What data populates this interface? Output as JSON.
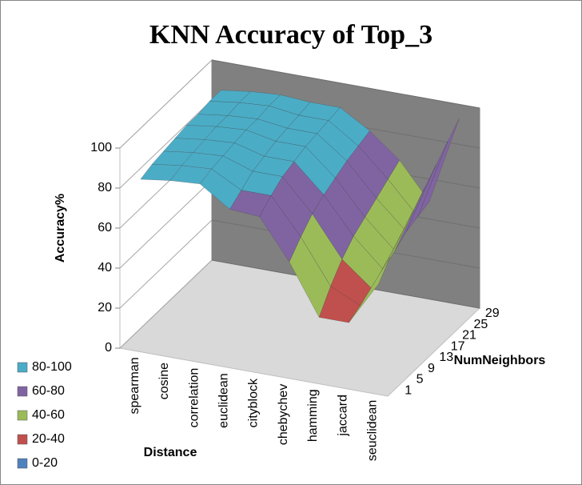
{
  "chart_data": {
    "type": "surface3d",
    "title": "KNN Accuracy of Top_3",
    "x_label": "Distance",
    "y_label": "Accuracy%",
    "z_label": "NumNeighbors",
    "categories": [
      "spearman",
      "cosine",
      "correlation",
      "euclidean",
      "cityblock",
      "chebychev",
      "hamming",
      "jaccard",
      "seuclidean"
    ],
    "z_categories": [
      "1",
      "5",
      "9",
      "13",
      "17",
      "21",
      "25",
      "29"
    ],
    "values": [
      [
        83,
        85,
        86,
        76,
        75,
        55,
        30,
        30,
        52
      ],
      [
        85,
        87,
        88,
        80,
        80,
        62,
        40,
        33,
        60
      ],
      [
        86,
        88,
        89,
        84,
        84,
        68,
        48,
        36,
        66
      ],
      [
        87,
        89,
        90,
        86,
        86,
        72,
        54,
        40,
        72
      ],
      [
        88,
        90,
        91,
        88,
        88,
        75,
        58,
        44,
        78
      ],
      [
        88,
        90,
        91,
        89,
        89,
        78,
        62,
        48,
        84
      ],
      [
        89,
        91,
        92,
        90,
        90,
        80,
        66,
        50,
        90
      ],
      [
        89,
        91,
        92,
        91,
        91,
        82,
        70,
        52,
        96
      ]
    ],
    "bands": [
      {
        "name": "80-100",
        "color": "#4bacc6",
        "range": [
          80,
          100
        ]
      },
      {
        "name": "60-80",
        "color": "#8064a2",
        "range": [
          60,
          80
        ]
      },
      {
        "name": "40-60",
        "color": "#9bbb59",
        "range": [
          40,
          60
        ]
      },
      {
        "name": "20-40",
        "color": "#c0504d",
        "range": [
          20,
          40
        ]
      },
      {
        "name": "0-20",
        "color": "#4f81bd",
        "range": [
          0,
          20
        ]
      }
    ],
    "ylim": [
      0,
      100
    ],
    "yticks": [
      0,
      20,
      40,
      60,
      80,
      100
    ],
    "grid": true
  }
}
